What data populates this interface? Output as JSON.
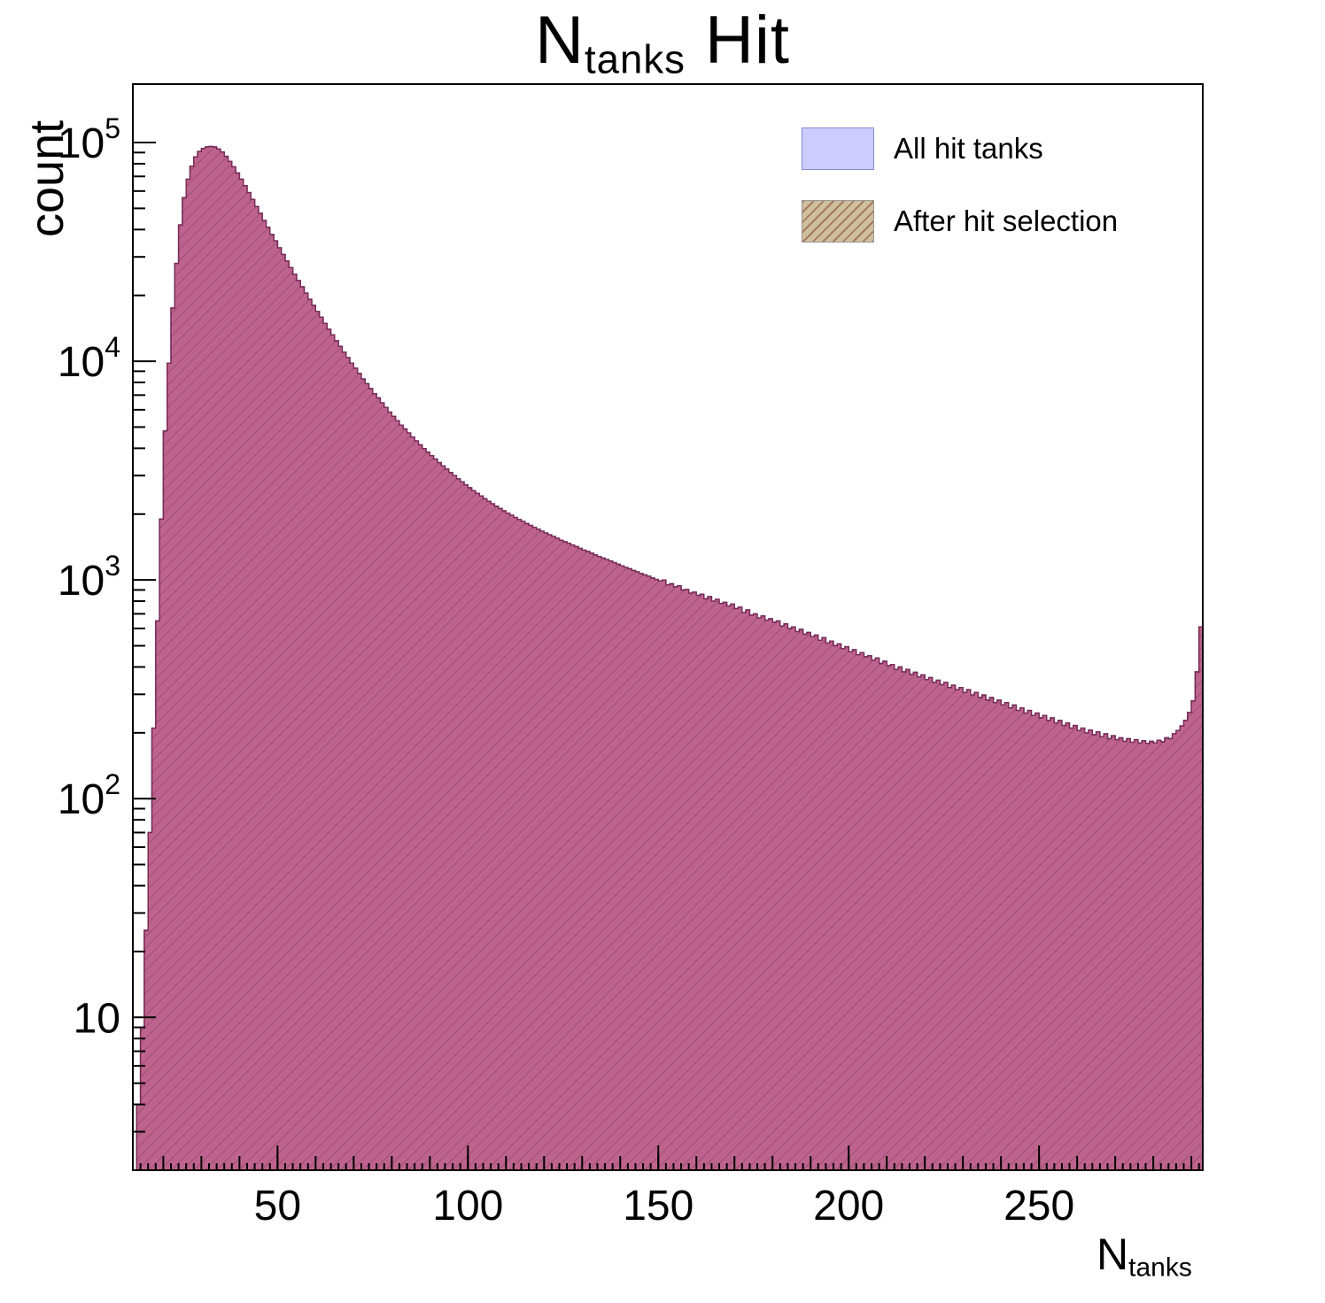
{
  "title": {
    "prefix": "N",
    "sub": "tanks",
    "suffix": " Hit"
  },
  "y_axis": {
    "title": "count"
  },
  "x_axis": {
    "title_prefix": "N",
    "title_sub": "tanks"
  },
  "legend": {
    "position": "top-right",
    "items": [
      {
        "label": "All hit tanks",
        "swatch": "all"
      },
      {
        "label": "After hit selection",
        "swatch": "after"
      }
    ]
  },
  "colors": {
    "all_fill": "#ccccff",
    "all_stroke": "#3a3ac8",
    "after_fill": "rgba(186,64,104,0.75)",
    "after_stroke": "#7a2a52",
    "frame": "#000000"
  },
  "chart_data": {
    "type": "histogram",
    "title": "N_tanks Hit",
    "xlabel": "N_tanks",
    "ylabel": "count",
    "y_scale": "log",
    "grid": false,
    "legend_position": "top-right",
    "x_start": 12,
    "bin_width": 1,
    "x_range": [
      12,
      293
    ],
    "y_range": [
      2,
      185000
    ],
    "x_tick_values": [
      50,
      100,
      150,
      200,
      250
    ],
    "y_tick_exponents": [
      1,
      2,
      3,
      4,
      5
    ],
    "series": [
      {
        "name": "All hit tanks",
        "fill": "#ccccff",
        "stroke": "#3a3ac8",
        "hatch": false,
        "values": [
          2,
          4,
          9,
          25,
          70,
          210,
          650,
          1900,
          4800,
          9800,
          17500,
          28000,
          42000,
          56000,
          68000,
          78000,
          86000,
          91000,
          94000,
          95500,
          96000,
          95500,
          93500,
          90500,
          86500,
          82000,
          77500,
          72500,
          68000,
          63500,
          59000,
          55000,
          51000,
          47500,
          44000,
          41000,
          38000,
          35500,
          33000,
          30800,
          28700,
          26800,
          25000,
          23400,
          21900,
          20500,
          19200,
          18000,
          16900,
          15900,
          14900,
          14000,
          13200,
          12400,
          11700,
          11000,
          10400,
          9800,
          9300,
          8800,
          8300,
          7900,
          7500,
          7100,
          6800,
          6450,
          6150,
          5850,
          5600,
          5350,
          5100,
          4900,
          4700,
          4500,
          4320,
          4150,
          3990,
          3840,
          3700,
          3570,
          3440,
          3320,
          3210,
          3100,
          3000,
          2900,
          2810,
          2720,
          2640,
          2560,
          2490,
          2420,
          2350,
          2290,
          2230,
          2170,
          2120,
          2070,
          2020,
          1975,
          1930,
          1890,
          1850,
          1810,
          1775,
          1740,
          1705,
          1670,
          1640,
          1610,
          1580,
          1550,
          1520,
          1495,
          1470,
          1445,
          1420,
          1395,
          1370,
          1350,
          1325,
          1300,
          1280,
          1260,
          1240,
          1220,
          1200,
          1180,
          1160,
          1140,
          1125,
          1105,
          1090,
          1070,
          1055,
          1040,
          1020,
          1005,
          990,
          1000,
          950,
          960,
          930,
          940,
          900,
          905,
          870,
          880,
          850,
          860,
          820,
          840,
          800,
          815,
          780,
          790,
          760,
          775,
          740,
          750,
          710,
          730,
          690,
          700,
          670,
          685,
          655,
          665,
          640,
          650,
          615,
          630,
          600,
          610,
          580,
          595,
          565,
          575,
          550,
          560,
          530,
          545,
          515,
          525,
          500,
          510,
          485,
          495,
          470,
          480,
          455,
          465,
          445,
          450,
          430,
          440,
          415,
          425,
          405,
          410,
          390,
          400,
          380,
          390,
          370,
          378,
          360,
          368,
          350,
          358,
          340,
          348,
          332,
          340,
          322,
          330,
          315,
          322,
          306,
          315,
          298,
          306,
          290,
          298,
          282,
          290,
          275,
          282,
          268,
          275,
          260,
          268,
          253,
          260,
          246,
          253,
          240,
          246,
          234,
          240,
          228,
          234,
          222,
          228,
          216,
          222,
          210,
          216,
          205,
          210,
          200,
          206,
          196,
          202,
          192,
          198,
          188,
          194,
          186,
          190,
          183,
          188,
          181,
          186,
          180,
          184,
          179,
          183,
          180,
          185,
          182,
          190,
          188,
          198,
          205,
          215,
          228,
          248,
          280,
          380,
          610
        ]
      },
      {
        "name": "After hit selection",
        "fill": "rgba(186,64,104,0.75)",
        "stroke": "#7a2a52",
        "hatch": true,
        "values": [
          2,
          4,
          9,
          25,
          70,
          210,
          650,
          1900,
          4800,
          9800,
          17500,
          28000,
          42000,
          56000,
          68000,
          78000,
          86000,
          91000,
          94000,
          95500,
          96000,
          95500,
          93500,
          90500,
          86500,
          82000,
          77500,
          72500,
          68000,
          63500,
          59000,
          55000,
          51000,
          47500,
          44000,
          41000,
          38000,
          35500,
          33000,
          30800,
          28700,
          26800,
          25000,
          23400,
          21900,
          20500,
          19200,
          18000,
          16900,
          15900,
          14900,
          14000,
          13200,
          12400,
          11700,
          11000,
          10400,
          9800,
          9300,
          8800,
          8300,
          7900,
          7500,
          7100,
          6800,
          6450,
          6150,
          5850,
          5600,
          5350,
          5100,
          4900,
          4700,
          4500,
          4320,
          4150,
          3990,
          3840,
          3700,
          3570,
          3440,
          3320,
          3210,
          3100,
          3000,
          2900,
          2810,
          2720,
          2640,
          2560,
          2490,
          2420,
          2350,
          2290,
          2230,
          2170,
          2120,
          2070,
          2020,
          1975,
          1930,
          1890,
          1850,
          1810,
          1775,
          1740,
          1705,
          1670,
          1640,
          1610,
          1580,
          1550,
          1520,
          1495,
          1470,
          1445,
          1420,
          1395,
          1370,
          1350,
          1325,
          1300,
          1280,
          1260,
          1240,
          1220,
          1200,
          1180,
          1160,
          1140,
          1125,
          1105,
          1090,
          1070,
          1055,
          1040,
          1020,
          1005,
          990,
          1000,
          950,
          960,
          930,
          940,
          900,
          905,
          870,
          880,
          850,
          860,
          820,
          840,
          800,
          815,
          780,
          790,
          760,
          775,
          740,
          750,
          710,
          730,
          690,
          700,
          670,
          685,
          655,
          665,
          640,
          650,
          615,
          630,
          600,
          610,
          580,
          595,
          565,
          575,
          550,
          560,
          530,
          545,
          515,
          525,
          500,
          510,
          485,
          495,
          470,
          480,
          455,
          465,
          445,
          450,
          430,
          440,
          415,
          425,
          405,
          410,
          390,
          400,
          380,
          390,
          370,
          378,
          360,
          368,
          350,
          358,
          340,
          348,
          332,
          340,
          322,
          330,
          315,
          322,
          306,
          315,
          298,
          306,
          290,
          298,
          282,
          290,
          275,
          282,
          268,
          275,
          260,
          268,
          253,
          260,
          246,
          253,
          240,
          246,
          234,
          240,
          228,
          234,
          222,
          228,
          216,
          222,
          210,
          216,
          205,
          210,
          200,
          206,
          196,
          202,
          192,
          198,
          188,
          194,
          186,
          190,
          183,
          188,
          181,
          186,
          180,
          184,
          179,
          183,
          180,
          185,
          182,
          190,
          188,
          198,
          205,
          215,
          228,
          248,
          280,
          380,
          610
        ]
      }
    ]
  }
}
